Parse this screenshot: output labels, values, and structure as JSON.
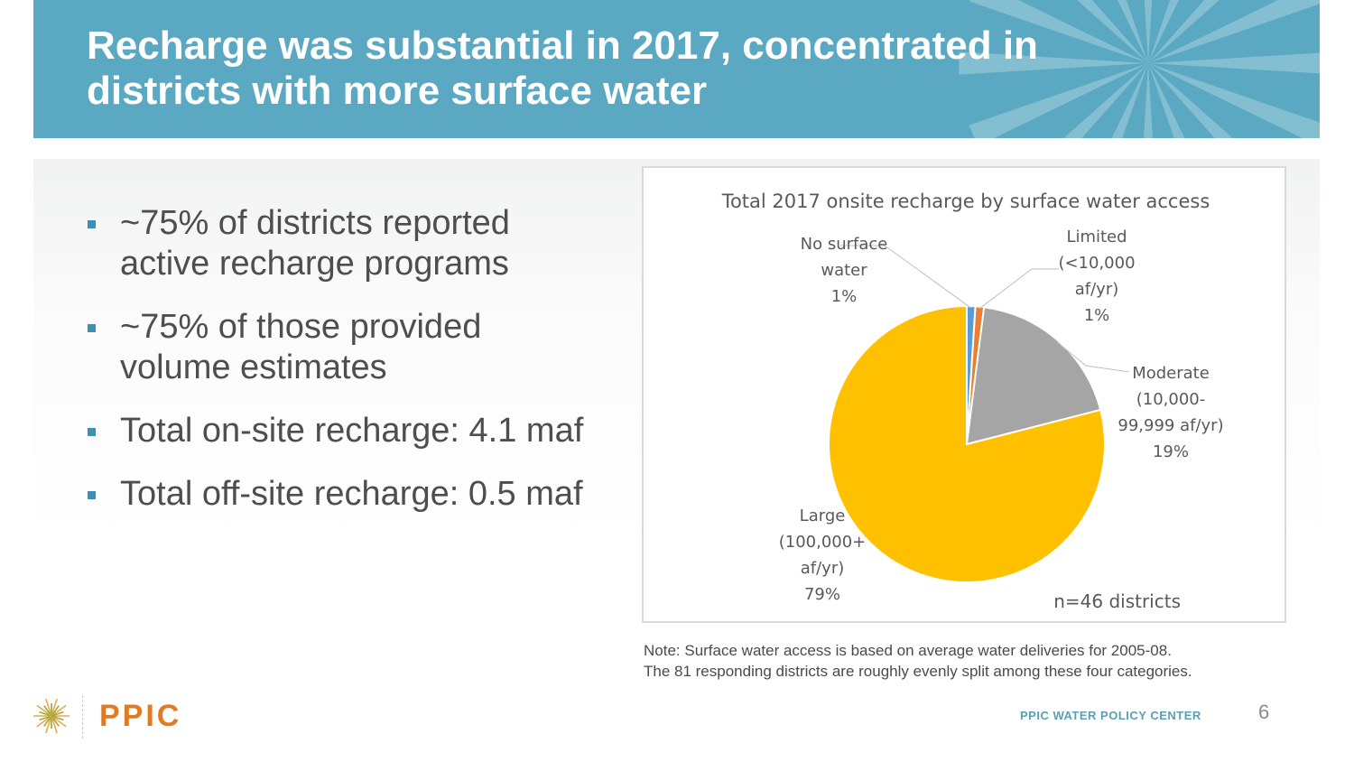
{
  "header": {
    "title_line1": "Recharge was substantial in 2017, concentrated in",
    "title_line2": "districts with more surface water",
    "background_color": "#5BA8C2"
  },
  "bullets": [
    {
      "line1": "~75% of districts reported",
      "line2": "active recharge programs"
    },
    {
      "line1": "~75% of those provided",
      "line2": "volume estimates"
    },
    {
      "line1": "Total on-site recharge: 4.1 maf",
      "line2": ""
    },
    {
      "line1": "Total off-site recharge: 0.5 maf",
      "line2": ""
    }
  ],
  "chart_data": {
    "type": "pie",
    "title": "Total 2017 onsite recharge by surface water access",
    "categories": [
      "No surface water",
      "Limited (<10,000 af/yr)",
      "Moderate (10,000-99,999 af/yr)",
      "Large (100,000+ af/yr)"
    ],
    "values": [
      1,
      1,
      19,
      79
    ],
    "unit": "%",
    "colors": [
      "#5B9BD5",
      "#ED7D31",
      "#A5A5A5",
      "#FFC000"
    ],
    "labels": [
      {
        "lines": [
          "No surface",
          "water",
          "1%"
        ]
      },
      {
        "lines": [
          "Limited",
          "(<10,000",
          "af/yr)",
          "1%"
        ]
      },
      {
        "lines": [
          "Moderate",
          "(10,000-",
          "99,999 af/yr)",
          "19%"
        ]
      },
      {
        "lines": [
          "Large",
          "(100,000+",
          "af/yr)",
          "79%"
        ]
      }
    ],
    "annotation": "n=46 districts",
    "start_angle": "12 o'clock, clockwise",
    "legend": "none (data labels)"
  },
  "note": {
    "line1": "Note: Surface water access is based on average water deliveries for 2005-08.",
    "line2": "The 81 responding districts are roughly evenly split among these four categories."
  },
  "footer": {
    "org": "PPIC WATER POLICY CENTER",
    "page_number": "6",
    "logo_text": "PPIC",
    "logo_color": "#E07B24"
  }
}
